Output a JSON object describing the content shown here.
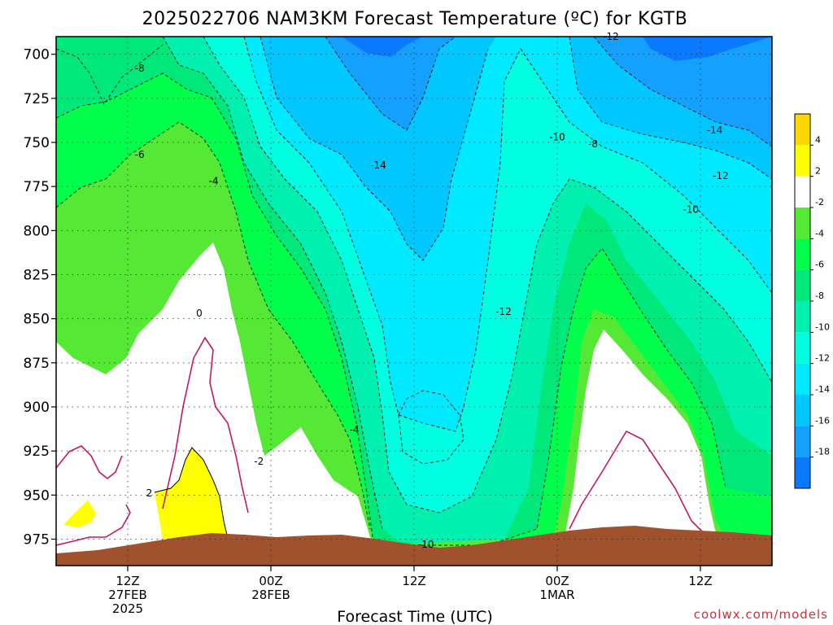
{
  "chart_data": {
    "type": "heatmap",
    "title": "2025022706 NAM3KM Forecast Temperature (ºC) for KGTB",
    "xlabel": "Forecast Time (UTC)",
    "ylabel": "",
    "y_axis": {
      "unit": "hPa",
      "ticks": [
        "700",
        "725",
        "750",
        "775",
        "800",
        "825",
        "850",
        "875",
        "900",
        "925",
        "950",
        "975"
      ],
      "range": [
        690,
        990
      ],
      "inverted": true
    },
    "x_axis": {
      "ticks": [
        {
          "hour": 6,
          "label": "12Z",
          "sub1": "27FEB",
          "sub2": "2025"
        },
        {
          "hour": 18,
          "label": "00Z",
          "sub1": "28FEB",
          "sub2": ""
        },
        {
          "hour": 30,
          "label": "12Z",
          "sub1": "",
          "sub2": ""
        },
        {
          "hour": 42,
          "label": "00Z",
          "sub1": "1MAR",
          "sub2": ""
        },
        {
          "hour": 54,
          "label": "12Z",
          "sub1": "",
          "sub2": ""
        }
      ],
      "range_hours": [
        0,
        60
      ],
      "grid": "dotted"
    },
    "colorbar": {
      "ticks": [
        "4",
        "2",
        "-2",
        "-4",
        "-6",
        "-8",
        "-10",
        "-12",
        "-14",
        "-16",
        "-18"
      ],
      "colors": [
        "#ffd700",
        "#ffff00",
        "#ffffff",
        "#55e835",
        "#00ff4a",
        "#00e87a",
        "#00f0b0",
        "#00ffe0",
        "#00eaff",
        "#00c8ff",
        "#14a0ff",
        "#0a78ff"
      ]
    },
    "contour_labels": [
      {
        "text": "-8",
        "h": 7.0,
        "p": 708
      },
      {
        "text": "-6",
        "h": 7.0,
        "p": 757
      },
      {
        "text": "-4",
        "h": 13.2,
        "p": 772
      },
      {
        "text": "0",
        "h": 12.0,
        "p": 847
      },
      {
        "text": "2",
        "h": 7.8,
        "p": 949
      },
      {
        "text": "-2",
        "h": 17.0,
        "p": 931
      },
      {
        "text": "-4",
        "h": 25.0,
        "p": 913
      },
      {
        "text": "-14",
        "h": 27.0,
        "p": 763
      },
      {
        "text": "-12",
        "h": 37.5,
        "p": 846
      },
      {
        "text": "-10",
        "h": 31.0,
        "p": 978
      },
      {
        "text": "-12",
        "h": 46.5,
        "p": 690
      },
      {
        "text": "-10",
        "h": 42.0,
        "p": 747
      },
      {
        "text": "-8",
        "h": 45.0,
        "p": 751
      },
      {
        "text": "-14",
        "h": 55.2,
        "p": 743
      },
      {
        "text": "-12",
        "h": 55.7,
        "p": 769
      },
      {
        "text": "-10",
        "h": 53.2,
        "p": 788
      }
    ],
    "credit": "coolwx.com/models"
  }
}
